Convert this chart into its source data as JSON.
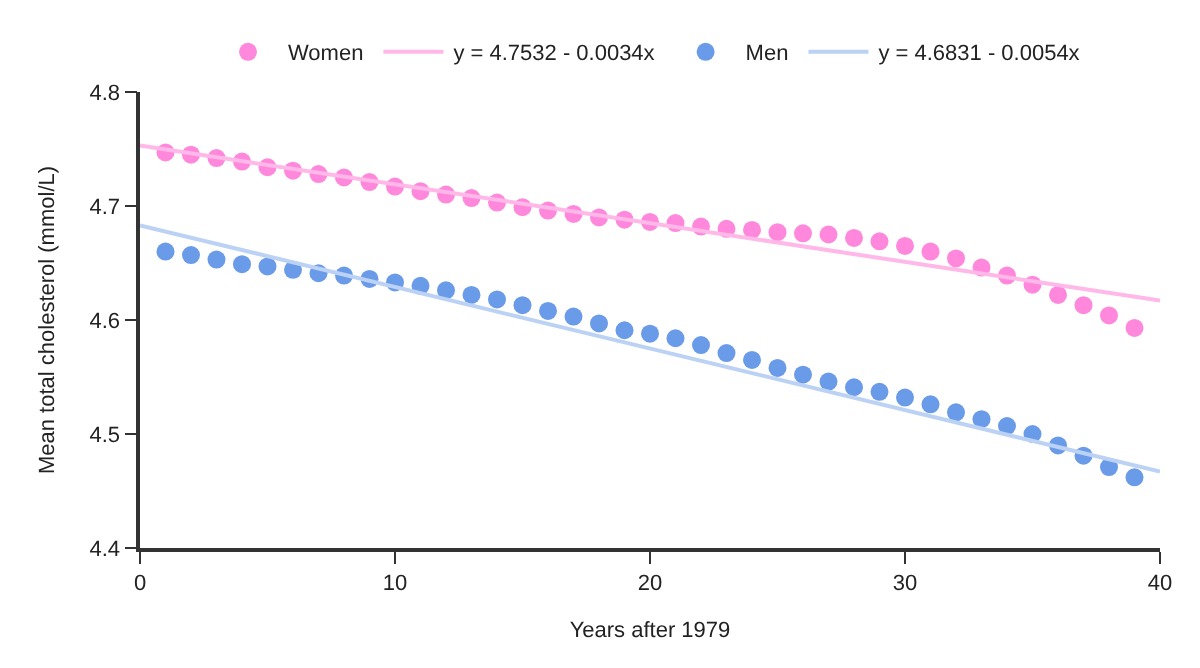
{
  "chart_data": {
    "type": "scatter",
    "xlabel": "Years after 1979",
    "ylabel": "Mean total cholesterol (mmol/L)",
    "xlim": [
      0,
      40
    ],
    "xticks": [
      0,
      10,
      20,
      30,
      40
    ],
    "ylim": [
      4.4,
      4.8
    ],
    "yticks": [
      4.4,
      4.5,
      4.6,
      4.7,
      4.8
    ],
    "grid": false,
    "legend": "top",
    "marker": "circle",
    "series": [
      {
        "name": "Women",
        "color": "#ff88dd",
        "x": [
          1,
          2,
          3,
          4,
          5,
          6,
          7,
          8,
          9,
          10,
          11,
          12,
          13,
          14,
          15,
          16,
          17,
          18,
          19,
          20,
          21,
          22,
          23,
          24,
          25,
          26,
          27,
          28,
          29,
          30,
          31,
          32,
          33,
          34,
          35,
          36,
          37,
          38,
          39
        ],
        "values": [
          4.747,
          4.745,
          4.742,
          4.739,
          4.734,
          4.731,
          4.728,
          4.725,
          4.721,
          4.717,
          4.713,
          4.71,
          4.707,
          4.703,
          4.699,
          4.696,
          4.693,
          4.69,
          4.688,
          4.686,
          4.685,
          4.682,
          4.68,
          4.679,
          4.677,
          4.676,
          4.675,
          4.672,
          4.669,
          4.665,
          4.66,
          4.654,
          4.646,
          4.639,
          4.631,
          4.622,
          4.613,
          4.604,
          4.593
        ]
      },
      {
        "name": "y = 4.7532 - 0.0034x",
        "type": "line",
        "marker": "none",
        "color": "#ffb8e8",
        "x": [
          0,
          40
        ],
        "values": [
          4.753,
          4.617
        ]
      },
      {
        "name": "Men",
        "color": "#6a9be8",
        "x": [
          1,
          2,
          3,
          4,
          5,
          6,
          7,
          8,
          9,
          10,
          11,
          12,
          13,
          14,
          15,
          16,
          17,
          18,
          19,
          20,
          21,
          22,
          23,
          24,
          25,
          26,
          27,
          28,
          29,
          30,
          31,
          32,
          33,
          34,
          35,
          36,
          37,
          38,
          39
        ],
        "values": [
          4.66,
          4.657,
          4.653,
          4.649,
          4.647,
          4.644,
          4.641,
          4.639,
          4.636,
          4.633,
          4.63,
          4.626,
          4.622,
          4.618,
          4.613,
          4.608,
          4.603,
          4.597,
          4.591,
          4.588,
          4.584,
          4.578,
          4.571,
          4.565,
          4.558,
          4.552,
          4.546,
          4.541,
          4.537,
          4.532,
          4.526,
          4.519,
          4.513,
          4.507,
          4.5,
          4.49,
          4.481,
          4.471,
          4.462
        ]
      },
      {
        "name": "y = 4.6831 - 0.0054x",
        "type": "line",
        "marker": "none",
        "color": "#bcd2f5",
        "x": [
          0,
          40
        ],
        "values": [
          4.683,
          4.467
        ]
      }
    ]
  }
}
